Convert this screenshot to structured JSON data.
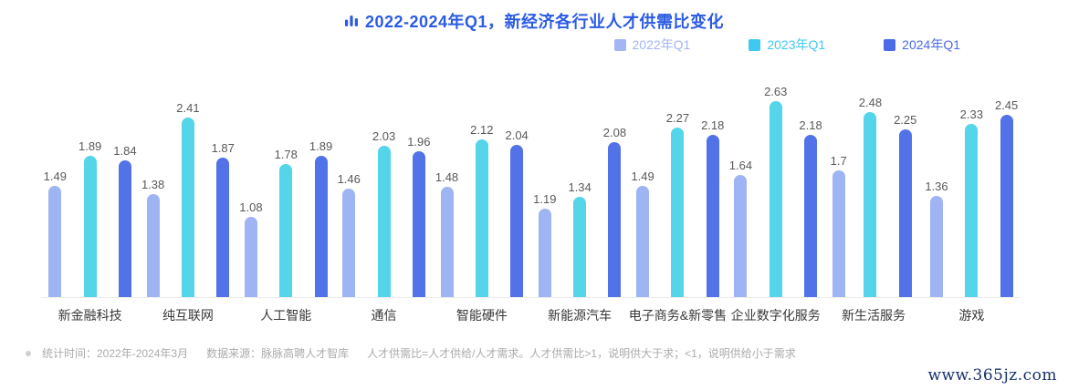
{
  "title": {
    "text": "2022-2024年Q1，新经济各行业人才供需比变化",
    "icon": "bar-chart-icon",
    "color": "#2B5BE3"
  },
  "legend": [
    {
      "label": "2022年Q1",
      "color": "#A3B6F4"
    },
    {
      "label": "2023年Q1",
      "color": "#3FC9F0"
    },
    {
      "label": "2024年Q1",
      "color": "#4A6AE8"
    }
  ],
  "chart_data": {
    "type": "bar",
    "title": "2022-2024年Q1，新经济各行业人才供需比变化",
    "categories": [
      "新金融科技",
      "纯互联网",
      "人工智能",
      "通信",
      "智能硬件",
      "新能源汽车",
      "电子商务&新零售",
      "企业数字化服务",
      "新生活服务",
      "游戏"
    ],
    "series": [
      {
        "name": "2022年Q1",
        "color": "#9FB4F3",
        "values": [
          1.49,
          1.38,
          1.08,
          1.46,
          1.48,
          1.19,
          1.49,
          1.64,
          1.7,
          1.36
        ]
      },
      {
        "name": "2023年Q1",
        "color": "#54D5EA",
        "values": [
          1.89,
          2.41,
          1.78,
          2.03,
          2.12,
          1.34,
          2.27,
          2.63,
          2.48,
          2.33
        ]
      },
      {
        "name": "2024年Q1",
        "color": "#5272E8",
        "values": [
          1.84,
          1.87,
          1.89,
          1.96,
          2.04,
          2.08,
          2.18,
          2.18,
          2.25,
          2.45
        ]
      }
    ],
    "xlabel": "",
    "ylabel": "",
    "ylim": [
      0,
      2.85
    ],
    "grid": false,
    "value_labels": true,
    "legend_position": "top-right"
  },
  "footer": {
    "stat_time": "统计时间：2022年-2024年3月",
    "source": "数据来源：脉脉高聘人才智库",
    "note": "人才供需比=人才供给/人才需求。人才供需比>1，说明供大于求；<1，说明供给小于需求"
  },
  "watermark": "www.365jz.com"
}
